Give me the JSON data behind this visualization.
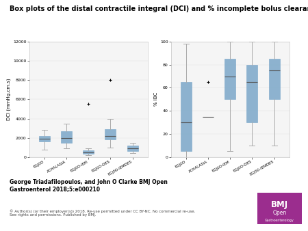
{
  "title": "Box plots of the distal contractile integral (DCI) and % incomplete bolus clearance (IBC).",
  "title_fontsize": 7.0,
  "categories": [
    "EGJ0O",
    "ACHALASIA",
    "EGJ0O-IEM",
    "EGJ0O-DES",
    "EGJ0O-IEMDES"
  ],
  "dci_ylabel": "DCI (mmHg.cm.s)",
  "dci_ylim": [
    0,
    12000
  ],
  "dci_yticks": [
    0,
    2000,
    4000,
    6000,
    8000,
    10000,
    12000
  ],
  "dci_data": {
    "EGJ0O": {
      "q1": 1600,
      "med": 1900,
      "q3": 2200,
      "whislo": 800,
      "whishi": 2800,
      "fliers": []
    },
    "ACHALASIA": {
      "q1": 1500,
      "med": 2000,
      "q3": 2700,
      "whislo": 900,
      "whishi": 3500,
      "fliers": []
    },
    "EGJ0O-IEM": {
      "q1": 350,
      "med": 500,
      "q3": 700,
      "whislo": 200,
      "whishi": 900,
      "fliers": [
        5500
      ]
    },
    "EGJ0O-DES": {
      "q1": 1800,
      "med": 2200,
      "q3": 2900,
      "whislo": 1000,
      "whishi": 4000,
      "fliers": [
        8000
      ]
    },
    "EGJ0O-IEMDES": {
      "q1": 600,
      "med": 900,
      "q3": 1200,
      "whislo": 400,
      "whishi": 1500,
      "fliers": []
    }
  },
  "ibc_ylabel": "% IBC",
  "ibc_ylim": [
    0,
    100
  ],
  "ibc_yticks": [
    0,
    20,
    40,
    60,
    80,
    100
  ],
  "ibc_data": {
    "EGJ0O": {
      "q1": 5,
      "med": 30,
      "q3": 65,
      "whislo": 0,
      "whishi": 98,
      "fliers": []
    },
    "ACHALASIA": {
      "q1": 35,
      "med": 35,
      "q3": 35,
      "whislo": 35,
      "whishi": 35,
      "fliers": [
        65
      ]
    },
    "EGJ0O-IEM": {
      "q1": 50,
      "med": 70,
      "q3": 85,
      "whislo": 5,
      "whishi": 100,
      "fliers": []
    },
    "EGJ0O-DES": {
      "q1": 30,
      "med": 65,
      "q3": 80,
      "whislo": 10,
      "whishi": 100,
      "fliers": []
    },
    "EGJ0O-IEMDES": {
      "q1": 50,
      "med": 75,
      "q3": 85,
      "whislo": 10,
      "whishi": 100,
      "fliers": []
    }
  },
  "box_color": "#7BA7C9",
  "median_color": "#555555",
  "whisker_color": "#aaaaaa",
  "flier_color": "#555555",
  "bg_color": "#ffffff",
  "panel_bg": "#f5f5f5",
  "author_text": "George Triadafilopoulos, and John O Clarke BMJ Open\nGastroenterol 2018;5:e000210",
  "copyright_text": "© Author(s) (or their employer(s)) 2018. Re-use permitted under CC BY-NC. No commercial re-use.\nSee rights and permissions. Published by BMJ.",
  "bmj_box_color": "#9B2D8E"
}
